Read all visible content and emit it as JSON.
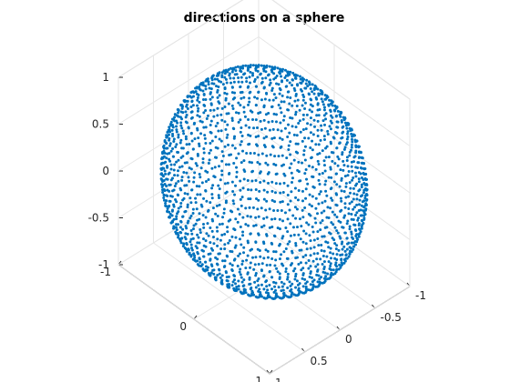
{
  "chart_data": {
    "type": "scatter3d",
    "title": "directions on a sphere",
    "xlabel": "",
    "ylabel": "",
    "zlabel": "",
    "xlim": [
      -1,
      1
    ],
    "ylim": [
      -1,
      1
    ],
    "zlim": [
      -1,
      1
    ],
    "grid": true,
    "view": "default 3-D view",
    "x_ticks": [
      -1,
      0,
      1
    ],
    "x_tick_labels": [
      "-1",
      "0",
      "1"
    ],
    "y_ticks": [
      -1,
      -0.5,
      0,
      0.5,
      1
    ],
    "y_tick_labels": [
      "-1",
      "-0.5",
      "0",
      "0.5",
      "1"
    ],
    "z_ticks": [
      -1,
      -0.5,
      0,
      0.5,
      1
    ],
    "z_tick_labels": [
      "-1",
      "-0.5",
      "0",
      "0.5",
      "1"
    ],
    "series": [
      {
        "color": "#0072bd",
        "marker": "dot",
        "distribution": "unit sphere, latitude rings",
        "rings": 40,
        "points_at_equator": 80,
        "radius": 1
      }
    ]
  }
}
